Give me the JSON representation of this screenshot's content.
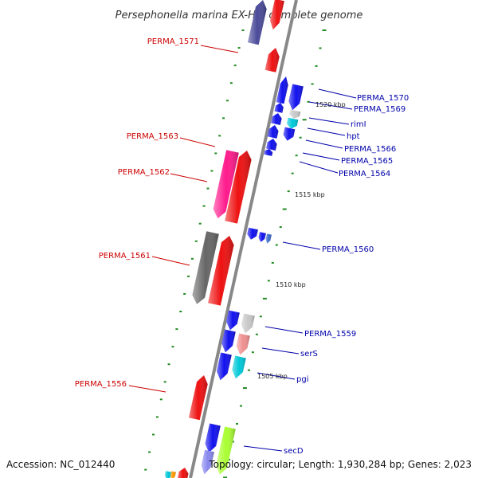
{
  "title": "Persephonella marina EX-H1, complete genome",
  "colors": {
    "backbone": "#888888",
    "tick": "#228b22",
    "label_left": "#cc0000",
    "label_right": "#0000aa",
    "red": "#ee1111",
    "pink": "#ff1a8c",
    "dark_gray": "#666666",
    "navy": "#4a4a99",
    "blue": "#1111ee",
    "cyan": "#00c8d8",
    "light_gray": "#c8c8c8",
    "salmon": "#f09090",
    "lime": "#aaff33",
    "orange": "#ff9900"
  },
  "scale_labels": [
    "1520 kbp",
    "1515 kbp",
    "1510 kbp",
    "1505 kbp"
  ],
  "left_labels": [
    "PERMA_1571",
    "PERMA_1563",
    "PERMA_1562",
    "PERMA_1561",
    "PERMA_1556"
  ],
  "right_labels": [
    "PERMA_1570",
    "PERMA_1569",
    "rimI",
    "hpt",
    "PERMA_1566",
    "PERMA_1565",
    "PERMA_1564",
    "PERMA_1560",
    "PERMA_1559",
    "serS",
    "pgi",
    "secD"
  ],
  "footer": {
    "accession": "Accession: NC_012440",
    "summary": "Topology: circular; Length: 1,930,284 bp; Genes: 2,023"
  }
}
